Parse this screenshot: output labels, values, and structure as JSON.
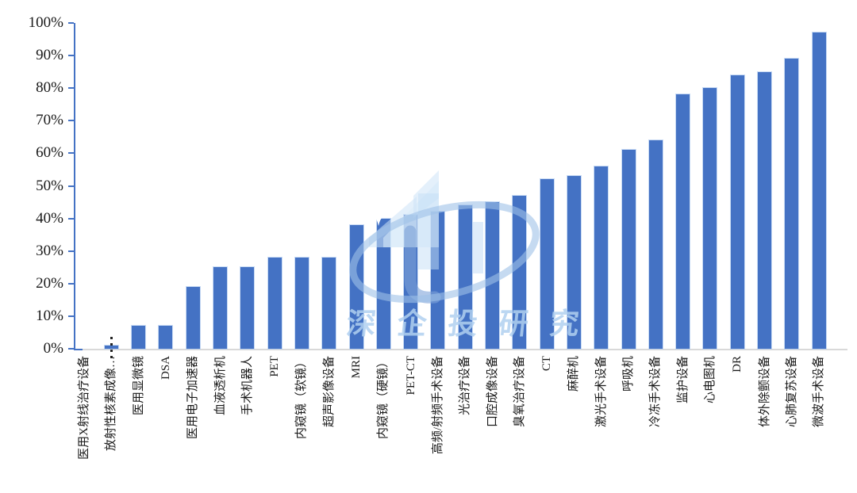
{
  "chart_data": {
    "type": "bar",
    "title": "",
    "xlabel": "",
    "ylabel": "",
    "ylim": [
      0,
      100
    ],
    "grid": false,
    "legend": "none",
    "ytick_labels": [
      "0%",
      "10%",
      "20%",
      "30%",
      "40%",
      "50%",
      "60%",
      "70%",
      "80%",
      "90%",
      "100%"
    ],
    "categories": [
      "医用X射线治疗设备",
      "放射性核素成像…",
      "医用显微镜",
      "DSA",
      "医用电子加速器",
      "血液透析机",
      "手术机器人",
      "PET",
      "内窥镜（软镜）",
      "超声影像设备",
      "MRI",
      "内窥镜（硬镜）",
      "PET-CT",
      "高频/射频手术设备",
      "光治疗设备",
      "口腔成像设备",
      "臭氧治疗设备",
      "CT",
      "麻醉机",
      "激光手术设备",
      "呼吸机",
      "冷冻手术设备",
      "监护设备",
      "心电图机",
      "DR",
      "体外除颤设备",
      "心肺复苏设备",
      "微波手术设备"
    ],
    "values": [
      0,
      1,
      7,
      7,
      19,
      25,
      25,
      28,
      28,
      28,
      38,
      40,
      41,
      42,
      44,
      45,
      47,
      52,
      53,
      56,
      61,
      64,
      78,
      80,
      84,
      85,
      89,
      97
    ],
    "bar_color": "#4472C4",
    "axis_color": "#4472C4",
    "baseline_color": "#D9D9D9"
  },
  "watermark": {
    "text": "深企投研究",
    "color": "#B0D0F0"
  }
}
